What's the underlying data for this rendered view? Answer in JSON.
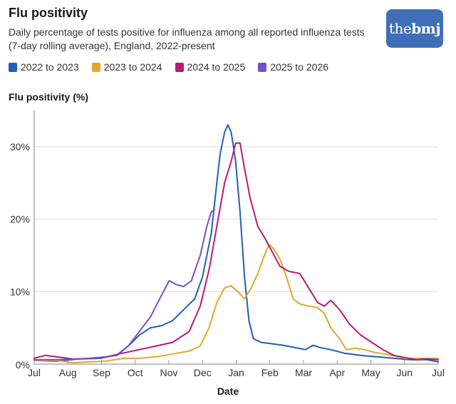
{
  "header": {
    "title": "Flu positivity",
    "subtitle": "Daily percentage of tests positive for influenza among all reported influenza tests (7-day rolling average), England, 2022-present",
    "logo_text_light": "the",
    "logo_text_bold": "bmj"
  },
  "colors": {
    "logo_bg": "#3f6fb6",
    "grid": "#e0e0e0",
    "axis": "#999999"
  },
  "chart_data": {
    "type": "line",
    "title": "Flu positivity",
    "ylabel": "Flu positivity (%)",
    "xlabel": "Date",
    "ylim": [
      0,
      35
    ],
    "yticks": [
      0,
      10,
      20,
      30
    ],
    "ytick_labels": [
      "0%",
      "10%",
      "20%",
      "30%"
    ],
    "xlim_days": [
      0,
      365
    ],
    "xticks": [
      "Jul",
      "Aug",
      "Sep",
      "Oct",
      "Nov",
      "Dec",
      "Jan",
      "Feb",
      "Mar",
      "Apr",
      "May",
      "Jun",
      "Jul"
    ],
    "x_unit": "days since 1 July",
    "grid": true,
    "legend_position": "top-left",
    "series": [
      {
        "name": "2022 to 2023",
        "color": "#1f5fb8",
        "points": [
          [
            0,
            0.5
          ],
          [
            20,
            0.4
          ],
          [
            40,
            0.7
          ],
          [
            60,
            0.8
          ],
          [
            75,
            1.3
          ],
          [
            85,
            2.5
          ],
          [
            95,
            4.0
          ],
          [
            105,
            5.0
          ],
          [
            115,
            5.3
          ],
          [
            125,
            6.0
          ],
          [
            135,
            7.5
          ],
          [
            145,
            9.0
          ],
          [
            152,
            12.0
          ],
          [
            160,
            18.0
          ],
          [
            165,
            25.0
          ],
          [
            168,
            29.0
          ],
          [
            172,
            32.0
          ],
          [
            175,
            33.0
          ],
          [
            178,
            32.0
          ],
          [
            182,
            28.0
          ],
          [
            186,
            21.0
          ],
          [
            190,
            12.0
          ],
          [
            194,
            6.0
          ],
          [
            198,
            3.5
          ],
          [
            205,
            3.0
          ],
          [
            215,
            2.8
          ],
          [
            225,
            2.6
          ],
          [
            235,
            2.3
          ],
          [
            245,
            2.0
          ],
          [
            252,
            2.6
          ],
          [
            258,
            2.3
          ],
          [
            268,
            2.0
          ],
          [
            280,
            1.5
          ],
          [
            295,
            1.2
          ],
          [
            310,
            1.0
          ],
          [
            325,
            0.8
          ],
          [
            340,
            0.6
          ],
          [
            355,
            0.6
          ],
          [
            365,
            0.3
          ]
        ]
      },
      {
        "name": "2023 to 2024",
        "color": "#e6a52a",
        "points": [
          [
            0,
            0.5
          ],
          [
            20,
            0.5
          ],
          [
            35,
            0.2
          ],
          [
            50,
            0.3
          ],
          [
            65,
            0.4
          ],
          [
            80,
            0.8
          ],
          [
            95,
            0.8
          ],
          [
            110,
            1.0
          ],
          [
            125,
            1.4
          ],
          [
            140,
            1.8
          ],
          [
            150,
            2.5
          ],
          [
            158,
            5.0
          ],
          [
            165,
            8.5
          ],
          [
            172,
            10.5
          ],
          [
            178,
            10.8
          ],
          [
            184,
            10.0
          ],
          [
            190,
            9.0
          ],
          [
            196,
            10.5
          ],
          [
            202,
            12.5
          ],
          [
            208,
            15.0
          ],
          [
            212,
            16.5
          ],
          [
            216,
            16.0
          ],
          [
            222,
            14.5
          ],
          [
            228,
            12.0
          ],
          [
            234,
            9.0
          ],
          [
            240,
            8.3
          ],
          [
            248,
            8.0
          ],
          [
            256,
            7.8
          ],
          [
            262,
            7.0
          ],
          [
            268,
            5.0
          ],
          [
            276,
            3.5
          ],
          [
            282,
            2.0
          ],
          [
            290,
            2.2
          ],
          [
            298,
            2.0
          ],
          [
            308,
            1.6
          ],
          [
            320,
            1.3
          ],
          [
            335,
            0.8
          ],
          [
            350,
            0.8
          ],
          [
            365,
            0.8
          ]
        ]
      },
      {
        "name": "2024 to 2025",
        "color": "#b8197a",
        "points": [
          [
            0,
            0.8
          ],
          [
            10,
            1.2
          ],
          [
            20,
            1.0
          ],
          [
            35,
            0.7
          ],
          [
            50,
            0.8
          ],
          [
            65,
            1.0
          ],
          [
            80,
            1.5
          ],
          [
            95,
            2.0
          ],
          [
            110,
            2.5
          ],
          [
            125,
            3.0
          ],
          [
            140,
            4.5
          ],
          [
            150,
            8.0
          ],
          [
            158,
            13.0
          ],
          [
            165,
            19.0
          ],
          [
            172,
            25.0
          ],
          [
            178,
            28.0
          ],
          [
            182,
            30.5
          ],
          [
            186,
            30.5
          ],
          [
            190,
            27.0
          ],
          [
            195,
            23.0
          ],
          [
            202,
            19.0
          ],
          [
            208,
            17.5
          ],
          [
            215,
            15.5
          ],
          [
            222,
            13.5
          ],
          [
            230,
            12.8
          ],
          [
            240,
            12.5
          ],
          [
            248,
            10.5
          ],
          [
            256,
            8.5
          ],
          [
            262,
            8.0
          ],
          [
            268,
            8.8
          ],
          [
            276,
            7.5
          ],
          [
            285,
            5.5
          ],
          [
            295,
            4.0
          ],
          [
            305,
            3.0
          ],
          [
            315,
            2.0
          ],
          [
            325,
            1.2
          ],
          [
            335,
            0.9
          ],
          [
            345,
            0.6
          ],
          [
            355,
            0.7
          ],
          [
            365,
            0.6
          ]
        ]
      },
      {
        "name": "2025 to 2026",
        "color": "#7a4fc4",
        "points": [
          [
            0,
            0.6
          ],
          [
            20,
            0.6
          ],
          [
            40,
            0.7
          ],
          [
            60,
            0.9
          ],
          [
            75,
            1.2
          ],
          [
            85,
            2.5
          ],
          [
            95,
            4.5
          ],
          [
            105,
            6.5
          ],
          [
            115,
            9.5
          ],
          [
            122,
            11.5
          ],
          [
            128,
            11.0
          ],
          [
            135,
            10.7
          ],
          [
            142,
            11.5
          ],
          [
            150,
            15.0
          ],
          [
            156,
            19.0
          ],
          [
            160,
            21.0
          ],
          [
            163,
            21.3
          ]
        ]
      }
    ]
  }
}
